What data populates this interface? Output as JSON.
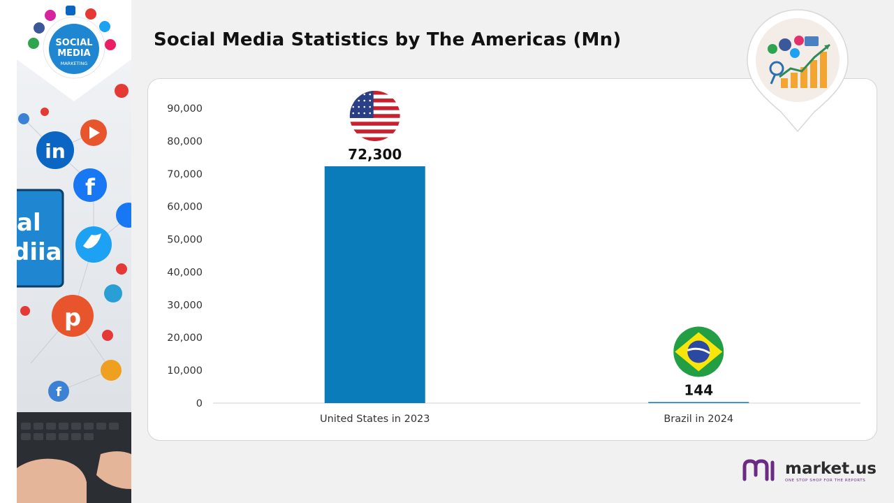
{
  "page": {
    "title": "Social Media Statistics by The Americas (Mn)"
  },
  "side_image": {
    "badge_line1": "SOCIAL",
    "badge_line2": "MEDIA",
    "badge_line3": "MARKETING",
    "screen_text_1": "al",
    "screen_text_2": "diia",
    "icons": [
      "linkedin-icon",
      "facebook-icon",
      "twitter-icon",
      "pinterest-icon",
      "youtube-icon",
      "instagram-icon"
    ]
  },
  "brand": {
    "name": "market.us",
    "tagline": "ONE STOP SHOP FOR THE REPORTS"
  },
  "colors": {
    "bar": "#0a7cb9",
    "accent_purple": "#6b2a83"
  },
  "chart_data": {
    "type": "bar",
    "title": "Social Media Statistics by The Americas (Mn)",
    "xlabel": "",
    "ylabel": "",
    "categories": [
      "United States in 2023",
      "Brazil in 2024"
    ],
    "values": [
      72300,
      144
    ],
    "value_labels": [
      "72,300",
      "144"
    ],
    "category_flags": [
      "us-flag-icon",
      "brazil-flag-icon"
    ],
    "ylim": [
      0,
      90000
    ],
    "yticks": [
      0,
      10000,
      20000,
      30000,
      40000,
      50000,
      60000,
      70000,
      80000,
      90000
    ],
    "ytick_labels": [
      "0",
      "10,000",
      "20,000",
      "30,000",
      "40,000",
      "50,000",
      "60,000",
      "70,000",
      "80,000",
      "90,000"
    ],
    "grid": false,
    "legend": "none"
  }
}
